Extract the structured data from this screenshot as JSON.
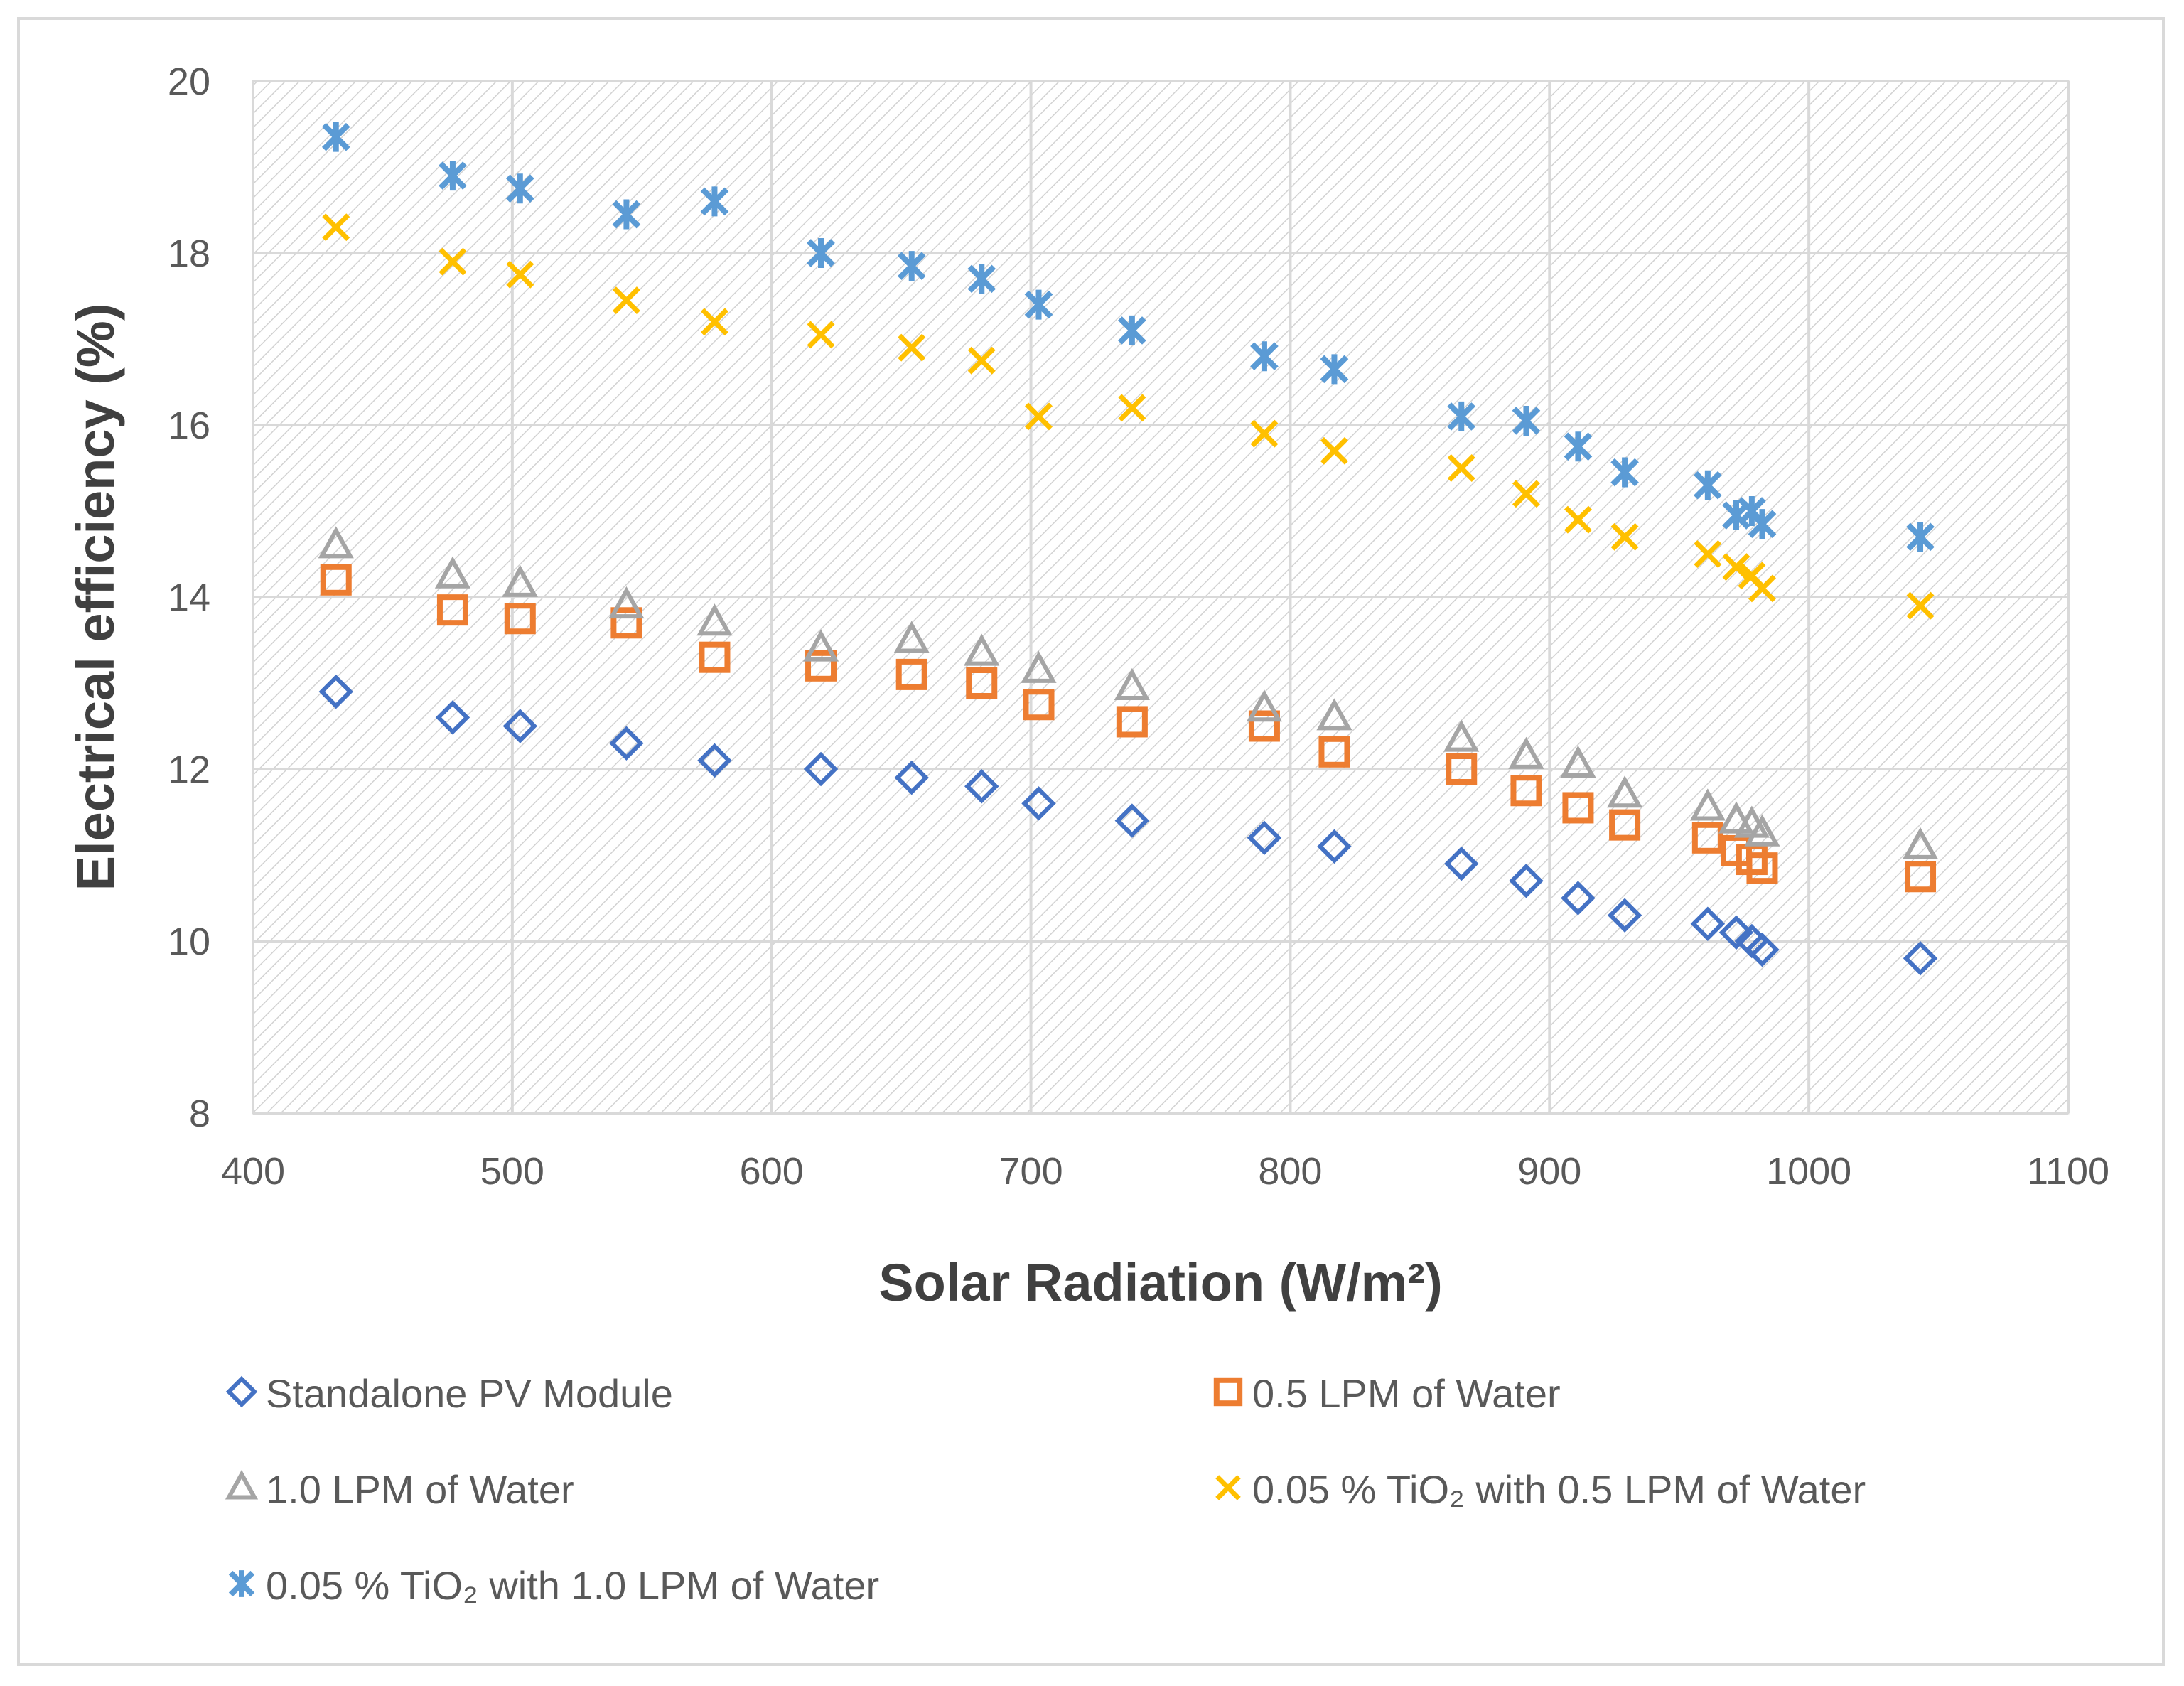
{
  "chart_data": {
    "type": "scatter",
    "xlabel": "Solar Radiation (W/m²)",
    "ylabel": "Electrical efficiency (%)",
    "xlim": [
      400,
      1100
    ],
    "ylim": [
      8,
      20
    ],
    "xticks": [
      "400",
      "500",
      "600",
      "700",
      "800",
      "900",
      "1000",
      "1100"
    ],
    "yticks": [
      "8",
      "10",
      "12",
      "14",
      "16",
      "18",
      "20"
    ],
    "grid": true,
    "legend_position": "bottom",
    "x": [
      432,
      477,
      503,
      544,
      578,
      619,
      654,
      681,
      703,
      739,
      790,
      817,
      866,
      891,
      911,
      929,
      961,
      972,
      978,
      982,
      1043
    ],
    "series": [
      {
        "name": "Standalone PV Module",
        "marker": "diamond",
        "color": "#4472C4",
        "values": [
          12.9,
          12.6,
          12.5,
          12.3,
          12.1,
          12.0,
          11.9,
          11.8,
          11.6,
          11.4,
          11.2,
          11.1,
          10.9,
          10.7,
          10.5,
          10.3,
          10.2,
          10.1,
          10.0,
          9.9,
          9.8
        ]
      },
      {
        "name": "0.5 LPM of Water",
        "marker": "square",
        "color": "#ED7D31",
        "values": [
          14.2,
          13.85,
          13.75,
          13.7,
          13.3,
          13.2,
          13.1,
          13.0,
          12.75,
          12.55,
          12.5,
          12.2,
          12.0,
          11.75,
          11.55,
          11.35,
          11.2,
          11.05,
          10.95,
          10.85,
          10.75
        ]
      },
      {
        "name": "1.0 LPM of Water",
        "marker": "triangle",
        "color": "#A5A5A5",
        "values": [
          14.6,
          14.25,
          14.15,
          13.9,
          13.7,
          13.4,
          13.5,
          13.35,
          13.15,
          12.95,
          12.7,
          12.6,
          12.35,
          12.15,
          12.05,
          11.7,
          11.55,
          11.4,
          11.35,
          11.25,
          11.1
        ]
      },
      {
        "name": "0.05 % TiO₂ with 0.5 LPM of Water",
        "marker": "x",
        "color": "#FFC000",
        "values": [
          18.3,
          17.9,
          17.75,
          17.45,
          17.2,
          17.05,
          16.9,
          16.75,
          16.1,
          16.2,
          15.9,
          15.7,
          15.5,
          15.2,
          14.9,
          14.7,
          14.5,
          14.35,
          14.25,
          14.1,
          13.9
        ]
      },
      {
        "name": "0.05 % TiO₂ with 1.0 LPM of Water",
        "marker": "star",
        "color": "#5B9BD5",
        "values": [
          19.35,
          18.9,
          18.75,
          18.45,
          18.6,
          18.0,
          17.85,
          17.7,
          17.4,
          17.1,
          16.8,
          16.65,
          16.1,
          16.05,
          15.75,
          15.45,
          15.3,
          14.95,
          15.0,
          14.85,
          14.7
        ]
      }
    ]
  }
}
